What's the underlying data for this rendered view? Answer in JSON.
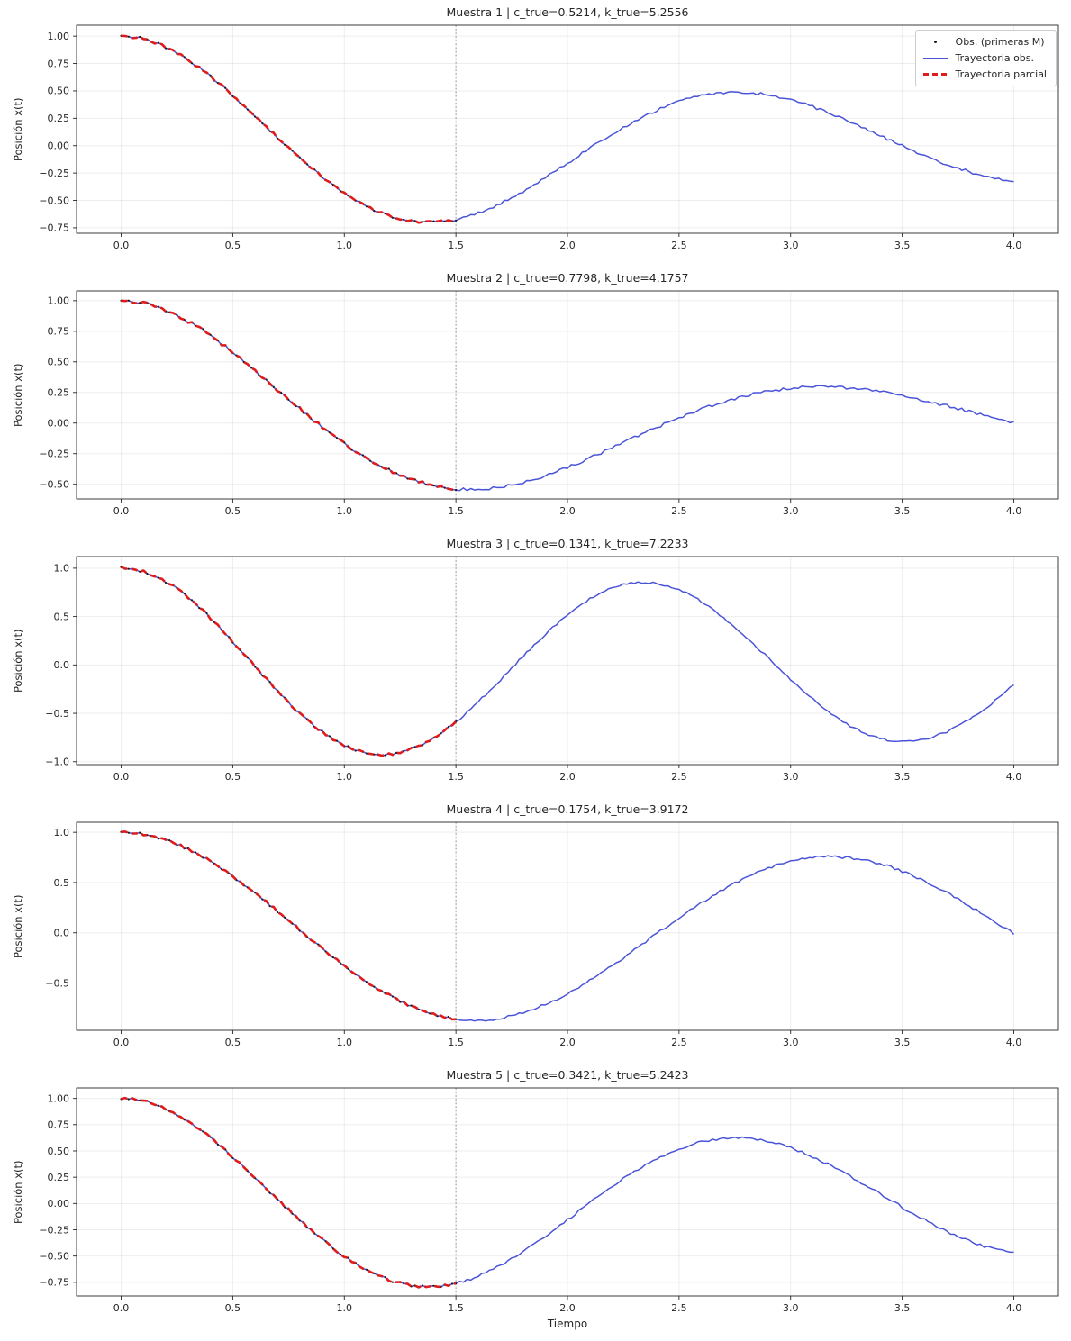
{
  "figure": {
    "xlabel": "Tiempo",
    "ylabel": "Posición x(t)",
    "x_tick_values": [
      0.0,
      0.5,
      1.0,
      1.5,
      2.0,
      2.5,
      3.0,
      3.5,
      4.0
    ],
    "x_tick_labels": [
      "0.0",
      "0.5",
      "1.0",
      "1.5",
      "2.0",
      "2.5",
      "3.0",
      "3.5",
      "4.0"
    ],
    "xlim": [
      -0.2,
      4.2
    ],
    "cut_time": 1.5,
    "t_end": 4.0,
    "initial_value": 1.0,
    "noise_amplitude": 0.012,
    "legend": [
      {
        "label": "Obs. (primeras M)",
        "marker": "dot",
        "color": "#1a1a1a"
      },
      {
        "label": "Trayectoria obs.",
        "marker": "line",
        "color": "#4a54d8"
      },
      {
        "label": "Trayectoria parcial",
        "marker": "dashed",
        "color": "#e01b1b"
      }
    ],
    "colors": {
      "obs_line": "#4a54d8",
      "partial_line": "#e01b1b",
      "obs_points": "#1a1a1a",
      "cut_line": "#999999",
      "axes": "#262626",
      "grid": "#000000"
    }
  },
  "chart_data": [
    {
      "type": "line",
      "title": "Muestra 1 | c_true=0.5214, k_true=5.2556",
      "params": {
        "c_true": 0.5214,
        "k_true": 5.2556
      },
      "seed": 11,
      "xlim": [
        -0.2,
        4.2
      ],
      "ylim": [
        -0.8,
        1.1
      ],
      "y_tick_values": [
        1.0,
        0.75,
        0.5,
        0.25,
        0.0,
        -0.25,
        -0.5,
        -0.75
      ],
      "y_tick_labels": [
        "1.00",
        "0.75",
        "0.50",
        "0.25",
        "0.00",
        "−0.25",
        "−0.50",
        "−0.75"
      ],
      "series": [
        {
          "name": "Trayectoria obs.",
          "t_range": [
            0.0,
            4.0
          ]
        },
        {
          "name": "Trayectoria parcial",
          "t_range": [
            0.0,
            1.5
          ]
        },
        {
          "name": "Obs. (primeras M)",
          "t_range": [
            0.0,
            1.5
          ]
        }
      ]
    },
    {
      "type": "line",
      "title": "Muestra 2 | c_true=0.7798, k_true=4.1757",
      "params": {
        "c_true": 0.7798,
        "k_true": 4.1757
      },
      "seed": 22,
      "xlim": [
        -0.2,
        4.2
      ],
      "ylim": [
        -0.62,
        1.08
      ],
      "y_tick_values": [
        1.0,
        0.75,
        0.5,
        0.25,
        0.0,
        -0.25,
        -0.5
      ],
      "y_tick_labels": [
        "1.00",
        "0.75",
        "0.50",
        "0.25",
        "0.00",
        "−0.25",
        "−0.50"
      ],
      "series": [
        {
          "name": "Trayectoria obs.",
          "t_range": [
            0.0,
            4.0
          ]
        },
        {
          "name": "Trayectoria parcial",
          "t_range": [
            0.0,
            1.5
          ]
        },
        {
          "name": "Obs. (primeras M)",
          "t_range": [
            0.0,
            1.5
          ]
        }
      ]
    },
    {
      "type": "line",
      "title": "Muestra 3 | c_true=0.1341, k_true=7.2233",
      "params": {
        "c_true": 0.1341,
        "k_true": 7.2233
      },
      "seed": 33,
      "xlim": [
        -0.2,
        4.2
      ],
      "ylim": [
        -1.03,
        1.12
      ],
      "y_tick_values": [
        1.0,
        0.5,
        0.0,
        -0.5,
        -1.0
      ],
      "y_tick_labels": [
        "1.0",
        "0.5",
        "0.0",
        "−0.5",
        "−1.0"
      ],
      "series": [
        {
          "name": "Trayectoria obs.",
          "t_range": [
            0.0,
            4.0
          ]
        },
        {
          "name": "Trayectoria parcial",
          "t_range": [
            0.0,
            1.5
          ]
        },
        {
          "name": "Obs. (primeras M)",
          "t_range": [
            0.0,
            1.5
          ]
        }
      ]
    },
    {
      "type": "line",
      "title": "Muestra 4 | c_true=0.1754, k_true=3.9172",
      "params": {
        "c_true": 0.1754,
        "k_true": 3.9172
      },
      "seed": 44,
      "xlim": [
        -0.2,
        4.2
      ],
      "ylim": [
        -0.97,
        1.1
      ],
      "y_tick_values": [
        1.0,
        0.5,
        0.0,
        -0.5
      ],
      "y_tick_labels": [
        "1.0",
        "0.5",
        "0.0",
        "−0.5"
      ],
      "series": [
        {
          "name": "Trayectoria obs.",
          "t_range": [
            0.0,
            4.0
          ]
        },
        {
          "name": "Trayectoria parcial",
          "t_range": [
            0.0,
            1.5
          ]
        },
        {
          "name": "Obs. (primeras M)",
          "t_range": [
            0.0,
            1.5
          ]
        }
      ]
    },
    {
      "type": "line",
      "title": "Muestra 5 | c_true=0.3421, k_true=5.2423",
      "params": {
        "c_true": 0.3421,
        "k_true": 5.2423
      },
      "seed": 55,
      "xlim": [
        -0.2,
        4.2
      ],
      "ylim": [
        -0.88,
        1.1
      ],
      "y_tick_values": [
        1.0,
        0.75,
        0.5,
        0.25,
        0.0,
        -0.25,
        -0.5,
        -0.75
      ],
      "y_tick_labels": [
        "1.00",
        "0.75",
        "0.50",
        "0.25",
        "0.00",
        "−0.25",
        "−0.50",
        "−0.75"
      ],
      "series": [
        {
          "name": "Trayectoria obs.",
          "t_range": [
            0.0,
            4.0
          ]
        },
        {
          "name": "Trayectoria parcial",
          "t_range": [
            0.0,
            1.5
          ]
        },
        {
          "name": "Obs. (primeras M)",
          "t_range": [
            0.0,
            1.5
          ]
        }
      ]
    }
  ]
}
